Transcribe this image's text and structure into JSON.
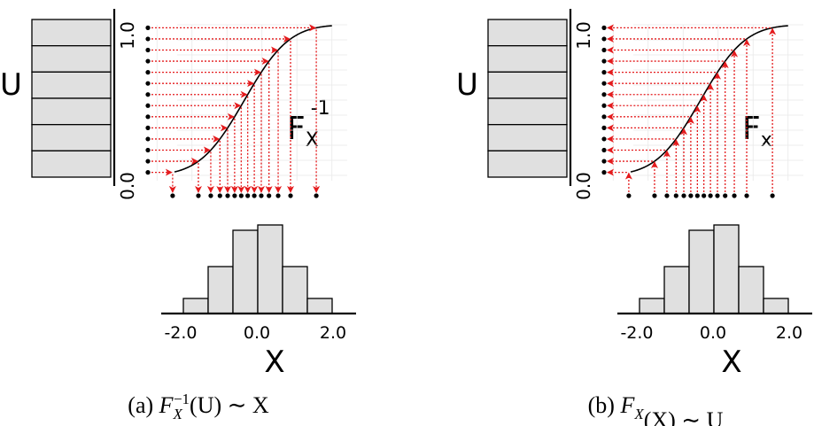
{
  "panels": [
    {
      "mode": "inverse",
      "u_label": "U",
      "x_label": "X",
      "curve_label": "F",
      "curve_sub": "X",
      "curve_sup": "-1",
      "y_tick_top": "1.0",
      "y_tick_bottom": "0.0",
      "x_ticks": [
        "-2.0",
        "0.0",
        "2.0"
      ],
      "caption_prefix": "(a) ",
      "caption_main": "F",
      "caption_sub": "X",
      "caption_sup": "−1",
      "caption_rest": "(U) ∼ X",
      "uniform_bins": 6,
      "hist_rel_heights": [
        0.17,
        0.53,
        0.94,
        1.0,
        0.53,
        0.17
      ]
    },
    {
      "mode": "forward",
      "u_label": "U",
      "x_label": "X",
      "curve_label": "F",
      "curve_sub": "x",
      "curve_sup": "",
      "y_tick_top": "1.0",
      "y_tick_bottom": "0.0",
      "x_ticks": [
        "-2.0",
        "0.0",
        "2.0"
      ],
      "caption_prefix": "(b) ",
      "caption_main": "F",
      "caption_sub": "X",
      "caption_sup": "",
      "caption_rest": "(X) ∼ U",
      "uniform_bins": 6,
      "hist_rel_heights": [
        0.17,
        0.53,
        0.94,
        1.0,
        0.53,
        0.17
      ]
    }
  ],
  "colors": {
    "arrow": "#e41a1c",
    "bar_fill": "#e0e0e0",
    "ink": "#000000",
    "grid": "#e8e8e8"
  }
}
